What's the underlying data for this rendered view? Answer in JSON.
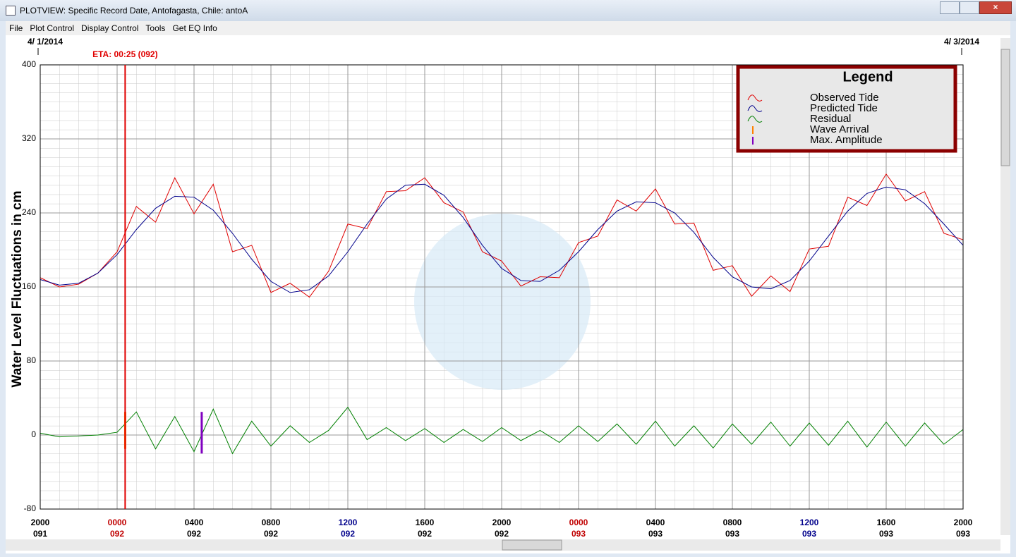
{
  "window": {
    "title": "PLOTVIEW: Specific Record Date, Antofagasta, Chile: antoA",
    "menu": [
      "File",
      "Plot Control",
      "Display Control",
      "Tools",
      "Get EQ Info"
    ]
  },
  "chart_data": {
    "type": "line",
    "ylabel": "Water Level Fluctuations in cm",
    "start_date": "4/ 1/2014",
    "end_date": "4/ 3/2014",
    "legend_title": "Legend",
    "eta": {
      "label": "ETA: 00:25 (092)",
      "x": 4.417,
      "color": "#e00000"
    },
    "xlim": [
      0,
      48
    ],
    "ylim": [
      -80,
      400
    ],
    "yticks": [
      -80,
      0,
      80,
      160,
      240,
      320,
      400
    ],
    "grid": true,
    "xticks": [
      {
        "value": 0,
        "label": "2000",
        "day": "091",
        "color": "#000000"
      },
      {
        "value": 4,
        "label": "0000",
        "day": "092",
        "color": "#c00000"
      },
      {
        "value": 8,
        "label": "0400",
        "day": "092",
        "color": "#000000"
      },
      {
        "value": 12,
        "label": "0800",
        "day": "092",
        "color": "#000000"
      },
      {
        "value": 16,
        "label": "1200",
        "day": "092",
        "color": "#00008b"
      },
      {
        "value": 20,
        "label": "1600",
        "day": "092",
        "color": "#000000"
      },
      {
        "value": 24,
        "label": "2000",
        "day": "092",
        "color": "#000000"
      },
      {
        "value": 28,
        "label": "0000",
        "day": "093",
        "color": "#c00000"
      },
      {
        "value": 32,
        "label": "0400",
        "day": "093",
        "color": "#000000"
      },
      {
        "value": 36,
        "label": "0800",
        "day": "093",
        "color": "#000000"
      },
      {
        "value": 40,
        "label": "1200",
        "day": "093",
        "color": "#00008b"
      },
      {
        "value": 44,
        "label": "1600",
        "day": "093",
        "color": "#000000"
      },
      {
        "value": 48,
        "label": "2000",
        "day": "093",
        "color": "#000000"
      }
    ],
    "x": [
      0,
      1,
      2,
      3,
      4,
      5,
      6,
      7,
      8,
      9,
      10,
      11,
      12,
      13,
      14,
      15,
      16,
      17,
      18,
      19,
      20,
      21,
      22,
      23,
      24,
      25,
      26,
      27,
      28,
      29,
      30,
      31,
      32,
      33,
      34,
      35,
      36,
      37,
      38,
      39,
      40,
      41,
      42,
      43,
      44,
      45,
      46,
      47,
      48
    ],
    "series": [
      {
        "name": "Observed Tide",
        "color": "#e00000",
        "values": [
          170,
          160,
          163,
          175,
          198,
          247,
          230,
          278,
          239,
          271,
          198,
          205,
          154,
          164,
          149,
          177,
          228,
          223,
          263,
          264,
          278,
          251,
          241,
          198,
          188,
          161,
          171,
          170,
          208,
          215,
          254,
          242,
          266,
          228,
          229,
          178,
          183,
          150,
          172,
          155,
          201,
          204,
          257,
          248,
          282,
          253,
          263,
          218,
          211
        ]
      },
      {
        "name": "Predicted Tide",
        "color": "#00008b",
        "values": [
          168,
          162,
          164,
          175,
          195,
          222,
          245,
          258,
          257,
          243,
          218,
          190,
          166,
          154,
          157,
          172,
          198,
          228,
          255,
          270,
          271,
          259,
          235,
          205,
          180,
          167,
          166,
          178,
          198,
          222,
          242,
          252,
          251,
          240,
          219,
          192,
          171,
          160,
          158,
          167,
          188,
          215,
          242,
          261,
          268,
          265,
          250,
          228,
          205
        ]
      },
      {
        "name": "Residual",
        "color": "#008000",
        "values": [
          2,
          -2,
          -1,
          0,
          3,
          25,
          -15,
          20,
          -18,
          28,
          -20,
          15,
          -12,
          10,
          -8,
          5,
          30,
          -5,
          8,
          -6,
          7,
          -8,
          6,
          -7,
          8,
          -6,
          5,
          -8,
          10,
          -7,
          12,
          -10,
          15,
          -12,
          10,
          -14,
          12,
          -10,
          14,
          -12,
          13,
          -11,
          15,
          -13,
          14,
          -12,
          13,
          -10,
          6
        ]
      }
    ],
    "markers": [
      {
        "name": "Wave Arrival",
        "color": "#ff8000",
        "x": 4.42,
        "values": [
          -15,
          25
        ]
      },
      {
        "name": "Max. Amplitude",
        "color": "#8000c0",
        "x": 8.4,
        "values": [
          -20,
          25
        ]
      }
    ]
  }
}
